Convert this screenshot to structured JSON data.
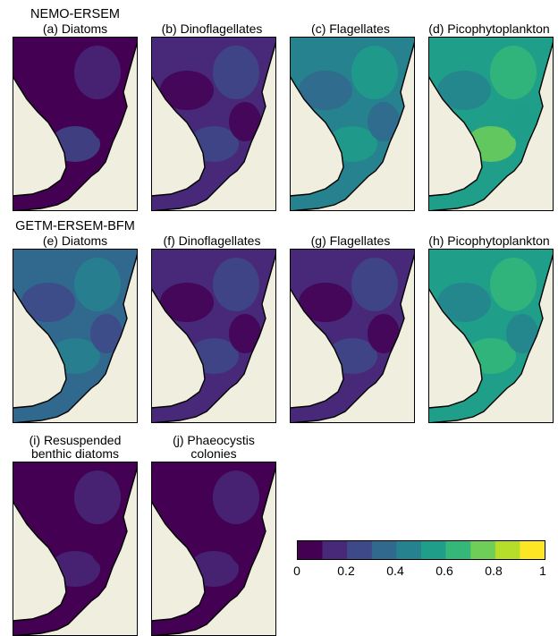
{
  "figure": {
    "rows": [
      {
        "model": "NEMO-ERSEM",
        "panels": [
          {
            "label": "(a) Diatoms",
            "level": 0.05
          },
          {
            "label": "(b) Dinoflagellates",
            "level": 0.12
          },
          {
            "label": "(c) Flagellates",
            "level": 0.42
          },
          {
            "label": "(d) Picophytoplankton",
            "level": 0.55
          }
        ]
      },
      {
        "model": "GETM-ERSEM-BFM",
        "panels": [
          {
            "label": "(e) Diatoms",
            "level": 0.3
          },
          {
            "label": "(f) Dinoflagellates",
            "level": 0.12
          },
          {
            "label": "(g) Flagellates",
            "level": 0.1
          },
          {
            "label": "(h) Picophytoplankton",
            "level": 0.5
          }
        ]
      },
      {
        "model": "",
        "panels": [
          {
            "label_line1": "(i) Resuspended",
            "label_line2": "benthic diatoms",
            "level": 0.02
          },
          {
            "label_line1": "(j) Phaeocystis",
            "label_line2": "colonies",
            "level": 0.03
          }
        ]
      }
    ],
    "colorbar": {
      "ticks": [
        "0",
        "0.2",
        "0.4",
        "0.6",
        "0.8",
        "1"
      ],
      "range": [
        0,
        1
      ],
      "colors": [
        "#440154",
        "#482878",
        "#3e4989",
        "#31688e",
        "#26828e",
        "#1f9e89",
        "#35b779",
        "#6ece58",
        "#b5de2b",
        "#fde725"
      ]
    },
    "land_color": "#f0eedf"
  }
}
